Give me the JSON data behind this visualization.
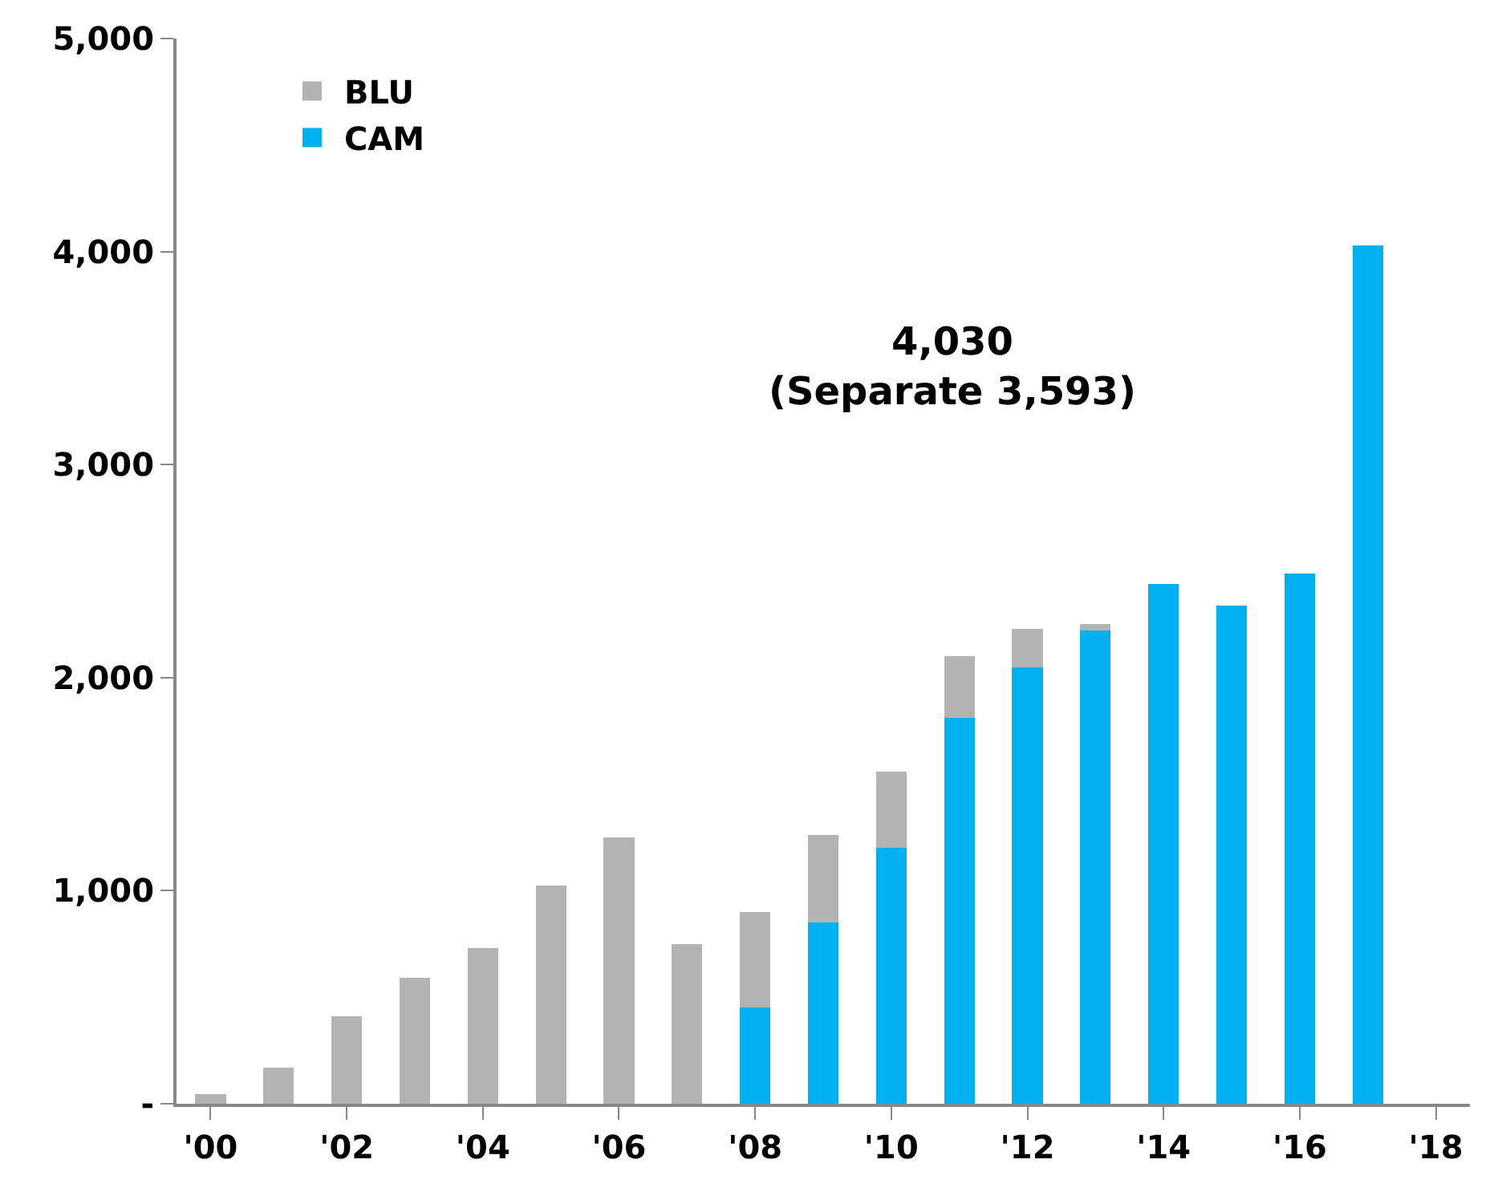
{
  "chart_data": {
    "type": "bar",
    "stacked": true,
    "categories": [
      "'00",
      null,
      "'02",
      null,
      "'04",
      null,
      "'06",
      null,
      "'08",
      null,
      "'10",
      null,
      "'12",
      null,
      "'14",
      null,
      "'16",
      null,
      "'18"
    ],
    "series": [
      {
        "name": "CAM",
        "color": "#00b0f0",
        "values": [
          null,
          null,
          null,
          null,
          null,
          null,
          null,
          null,
          450,
          850,
          1200,
          1810,
          2050,
          2220,
          2440,
          2340,
          2490,
          4030,
          null
        ]
      },
      {
        "name": "BLU",
        "color": "#b3b3b3",
        "values": [
          45,
          170,
          410,
          590,
          730,
          1025,
          1250,
          750,
          450,
          410,
          360,
          290,
          180,
          30,
          null,
          null,
          null,
          null,
          null
        ]
      }
    ],
    "ylim": [
      0,
      5000
    ],
    "yticks": [
      {
        "value": 0,
        "label": "-"
      },
      {
        "value": 1000,
        "label": "1,000"
      },
      {
        "value": 2000,
        "label": "2,000"
      },
      {
        "value": 3000,
        "label": "3,000"
      },
      {
        "value": 4000,
        "label": "4,000"
      },
      {
        "value": 5000,
        "label": "5,000"
      }
    ],
    "annotations": [
      "4,030\n(Separate 3,593)"
    ],
    "legend": "top left"
  }
}
